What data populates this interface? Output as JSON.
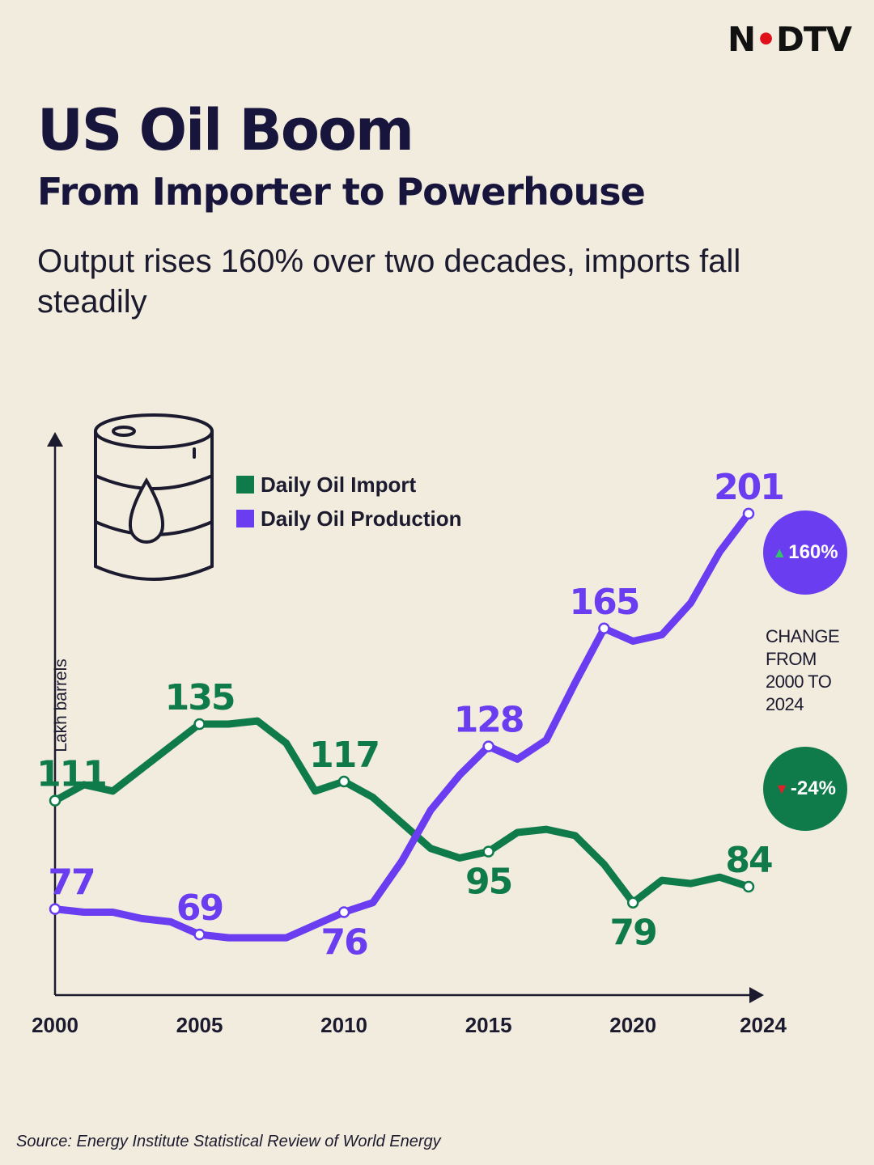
{
  "brand": {
    "pre": "N",
    "dot": "•",
    "post": "DTV"
  },
  "header": {
    "title": "US Oil Boom",
    "subtitle": "From Importer to Powerhouse",
    "deck": "Output rises 160% over two decades, imports fall steadily"
  },
  "legend": {
    "import_label": "Daily Oil Import",
    "production_label": "Daily Oil Production"
  },
  "badges": {
    "production_change": "160%",
    "import_change": "-24%",
    "up_arrow": "▲",
    "down_arrow": "▼",
    "note": "CHANGE FROM 2000 TO 2024"
  },
  "source": "Source: Energy Institute Statistical Review of World Energy",
  "colors": {
    "import": "#0f7a4a",
    "production": "#6a3df0",
    "up_arrow": "#34c46a",
    "down_arrow": "#e0202a",
    "axis": "#1b1a2e",
    "background": "#f2ecde"
  },
  "chart_data": {
    "type": "line",
    "title": "US Oil Boom",
    "ylabel": "Lakh barrels",
    "xlabel": "",
    "xlim": [
      2000,
      2024
    ],
    "ylim": [
      50,
      220
    ],
    "x_ticks": [
      "2000",
      "2005",
      "2010",
      "2015",
      "2020",
      "2024"
    ],
    "x": [
      2000,
      2001,
      2002,
      2003,
      2004,
      2005,
      2006,
      2007,
      2008,
      2009,
      2010,
      2011,
      2012,
      2013,
      2014,
      2015,
      2016,
      2017,
      2018,
      2019,
      2020,
      2021,
      2022,
      2023,
      2024
    ],
    "series": [
      {
        "name": "Daily Oil Import",
        "key": "import",
        "values": [
          111,
          116,
          114,
          121,
          128,
          135,
          135,
          136,
          129,
          114,
          117,
          112,
          104,
          96,
          93,
          95,
          101,
          102,
          100,
          91,
          79,
          86,
          85,
          87,
          84
        ],
        "labels": [
          {
            "x": 2000,
            "text": "111",
            "pos": "above"
          },
          {
            "x": 2005,
            "text": "135",
            "pos": "above"
          },
          {
            "x": 2010,
            "text": "117",
            "pos": "above"
          },
          {
            "x": 2015,
            "text": "95",
            "pos": "below"
          },
          {
            "x": 2020,
            "text": "79",
            "pos": "below"
          },
          {
            "x": 2024,
            "text": "84",
            "pos": "above"
          }
        ]
      },
      {
        "name": "Daily Oil Production",
        "key": "production",
        "values": [
          77,
          76,
          76,
          74,
          73,
          69,
          68,
          68,
          68,
          72,
          76,
          79,
          92,
          108,
          119,
          128,
          124,
          130,
          148,
          165,
          161,
          163,
          173,
          189,
          201
        ],
        "labels": [
          {
            "x": 2000,
            "text": "77",
            "pos": "above"
          },
          {
            "x": 2005,
            "text": "69",
            "pos": "above"
          },
          {
            "x": 2010,
            "text": "76",
            "pos": "below"
          },
          {
            "x": 2015,
            "text": "128",
            "pos": "above"
          },
          {
            "x": 2019,
            "text": "165",
            "pos": "above"
          },
          {
            "x": 2024,
            "text": "201",
            "pos": "above"
          }
        ]
      }
    ]
  }
}
